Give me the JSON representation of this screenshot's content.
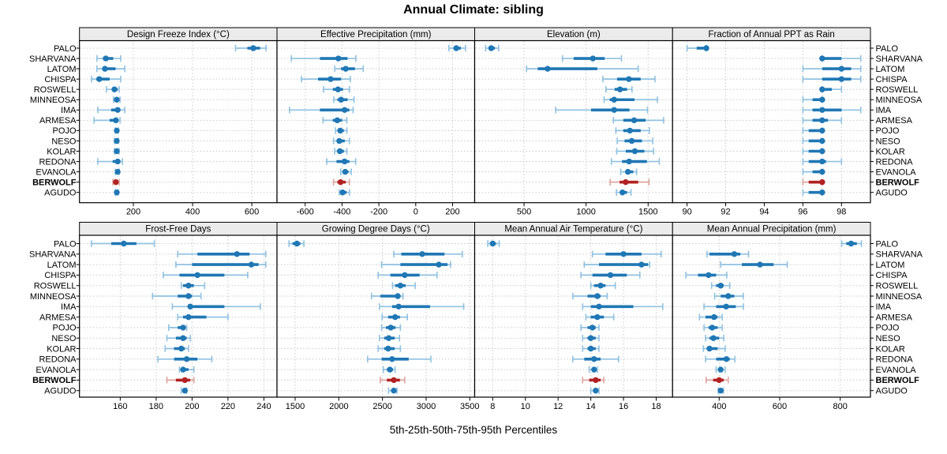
{
  "title": "Annual Climate: sibling",
  "caption": "5th-25th-50th-75th-95th Percentiles",
  "highlight_site": "BERWOLF",
  "sites": [
    "PALO",
    "SHARVANA",
    "LATOM",
    "CHISPA",
    "ROSWELL",
    "MINNEOSA",
    "IMA",
    "ARMESA",
    "POJO",
    "NESO",
    "KOLAR",
    "REDONA",
    "EVANOLA",
    "BERWOLF",
    "AGUDO"
  ],
  "colors": {
    "site_main": "#1f77b4",
    "site_light": "#8fc1e1",
    "highlight_main": "#b22222",
    "highlight_light": "#dda49e",
    "strip_bg": "#ebebeb",
    "grid": "#c9c9c9",
    "border": "#000000",
    "text": "#000000"
  },
  "chart_data": {
    "type": "dotplot",
    "subtype": "percentile-ranges",
    "percentiles": [
      "5th",
      "25th",
      "50th",
      "75th",
      "95th"
    ],
    "legend_position": "none",
    "grid": "dotted",
    "layout": {
      "rows": 2,
      "cols": 4
    },
    "row_order_top_to_bottom": [
      "PALO",
      "SHARVANA",
      "LATOM",
      "CHISPA",
      "ROSWELL",
      "MINNEOSA",
      "IMA",
      "ARMESA",
      "POJO",
      "NESO",
      "KOLAR",
      "REDONA",
      "EVANOLA",
      "BERWOLF",
      "AGUDO"
    ],
    "panels": [
      {
        "title": "Design Freeze Index (°C)",
        "ticks": [
          200,
          400,
          600
        ],
        "xlim": [
          18,
          685
        ],
        "values": [
          [
            545,
            585,
            605,
            628,
            648
          ],
          [
            77,
            97,
            107,
            132,
            157
          ],
          [
            77,
            95,
            104,
            140,
            171
          ],
          [
            59,
            75,
            85,
            120,
            157
          ],
          [
            109,
            128,
            136,
            147,
            152
          ],
          [
            133,
            140,
            144,
            150,
            155
          ],
          [
            80,
            125,
            147,
            155,
            171
          ],
          [
            67,
            120,
            141,
            150,
            155
          ],
          [
            139,
            142,
            144,
            147,
            149
          ],
          [
            136,
            141,
            144,
            147,
            149
          ],
          [
            136,
            141,
            144,
            148,
            152
          ],
          [
            80,
            130,
            147,
            153,
            163
          ],
          [
            139,
            144,
            147,
            150,
            152
          ],
          [
            131,
            138,
            141,
            147,
            152
          ],
          [
            139,
            142,
            144,
            147,
            149
          ]
        ]
      },
      {
        "title": "Effective Precipitation (mm)",
        "ticks": [
          -600,
          -400,
          -200,
          0,
          200
        ],
        "xlim": [
          -753,
          320
        ],
        "values": [
          [
            180,
            205,
            220,
            245,
            270
          ],
          [
            -675,
            -520,
            -420,
            -370,
            -325
          ],
          [
            -440,
            -405,
            -380,
            -330,
            -285
          ],
          [
            -620,
            -530,
            -462,
            -405,
            -355
          ],
          [
            -500,
            -450,
            -422,
            -395,
            -360
          ],
          [
            -445,
            -425,
            -405,
            -370,
            -335
          ],
          [
            -685,
            -520,
            -386,
            -360,
            -340
          ],
          [
            -503,
            -450,
            -426,
            -400,
            -374
          ],
          [
            -436,
            -420,
            -410,
            -390,
            -374
          ],
          [
            -446,
            -425,
            -415,
            -385,
            -360
          ],
          [
            -440,
            -422,
            -412,
            -390,
            -374
          ],
          [
            -483,
            -430,
            -386,
            -360,
            -326
          ],
          [
            -407,
            -392,
            -383,
            -365,
            -350
          ],
          [
            -446,
            -425,
            -408,
            -380,
            -360
          ],
          [
            -415,
            -403,
            -397,
            -375,
            -360
          ]
        ]
      },
      {
        "title": "Elevation (m)",
        "ticks": [
          500,
          1000,
          1500
        ],
        "xlim": [
          102,
          1697
        ],
        "values": [
          [
            190,
            215,
            235,
            265,
            295
          ],
          [
            810,
            900,
            1055,
            1150,
            1285
          ],
          [
            520,
            610,
            690,
            1090,
            1420
          ],
          [
            1135,
            1250,
            1345,
            1440,
            1555
          ],
          [
            1160,
            1230,
            1273,
            1330,
            1370
          ],
          [
            1145,
            1190,
            1226,
            1390,
            1575
          ],
          [
            755,
            1040,
            1226,
            1350,
            1495
          ],
          [
            1220,
            1300,
            1387,
            1480,
            1625
          ],
          [
            1240,
            1300,
            1353,
            1440,
            1510
          ],
          [
            1251,
            1310,
            1368,
            1450,
            1538
          ],
          [
            1247,
            1320,
            1393,
            1470,
            1544
          ],
          [
            1204,
            1290,
            1347,
            1490,
            1590
          ],
          [
            1279,
            1320,
            1337,
            1380,
            1407
          ],
          [
            1194,
            1270,
            1319,
            1420,
            1507
          ],
          [
            1245,
            1275,
            1293,
            1330,
            1362
          ]
        ]
      },
      {
        "title": "Fraction of Annual PPT as Rain",
        "ticks": [
          90,
          92,
          94,
          96,
          98
        ],
        "xlim": [
          89.25,
          99.5
        ],
        "values": [
          [
            90,
            90.5,
            91,
            91,
            91
          ],
          [
            97,
            97,
            97,
            98,
            99
          ],
          [
            96,
            97,
            98,
            98.5,
            99
          ],
          [
            96,
            97,
            98,
            98.5,
            99
          ],
          [
            97,
            97,
            97,
            97.5,
            98
          ],
          [
            96,
            96.5,
            97,
            97,
            97
          ],
          [
            96,
            96.5,
            97,
            98,
            99
          ],
          [
            96,
            96.5,
            97,
            97.3,
            98
          ],
          [
            96,
            96.3,
            97,
            97,
            97
          ],
          [
            96,
            96.3,
            97,
            97,
            97
          ],
          [
            96,
            96.3,
            97,
            97,
            97
          ],
          [
            96,
            96.3,
            97,
            97.2,
            98
          ],
          [
            96,
            96.5,
            97,
            97,
            97
          ],
          [
            96,
            96.3,
            97,
            97,
            97
          ],
          [
            96,
            96.3,
            97,
            97,
            97
          ]
        ]
      },
      {
        "title": "Frost-Free Days",
        "ticks": [
          160,
          180,
          200,
          220,
          240
        ],
        "xlim": [
          137.3,
          247.3
        ],
        "values": [
          [
            144,
            155,
            162,
            169,
            179
          ],
          [
            192,
            203,
            225,
            232,
            241
          ],
          [
            191,
            200,
            233,
            237,
            241
          ],
          [
            184,
            193,
            203,
            218,
            231
          ],
          [
            194,
            195,
            198,
            201,
            207
          ],
          [
            178,
            192,
            198,
            200,
            205
          ],
          [
            189,
            198,
            199,
            218,
            238
          ],
          [
            192,
            195,
            198,
            208,
            220
          ],
          [
            187,
            192,
            195,
            196,
            197
          ],
          [
            186,
            191,
            195,
            197,
            199
          ],
          [
            185,
            190,
            194,
            196,
            198
          ],
          [
            181,
            190,
            197,
            203,
            211
          ],
          [
            193,
            194,
            195,
            198,
            201
          ],
          [
            186,
            191,
            196,
            199,
            201
          ],
          [
            194,
            195,
            196,
            196.5,
            197
          ]
        ]
      },
      {
        "title": "Growing Degree Days (°C)",
        "ticks": [
          1500,
          2000,
          2500,
          3000,
          3500
        ],
        "xlim": [
          1292,
          3556
        ],
        "values": [
          [
            1430,
            1470,
            1520,
            1560,
            1600
          ],
          [
            2630,
            2715,
            2955,
            3210,
            3415
          ],
          [
            2490,
            2705,
            3145,
            3245,
            3280
          ],
          [
            2450,
            2590,
            2755,
            2925,
            3125
          ],
          [
            2615,
            2645,
            2705,
            2765,
            2875
          ],
          [
            2375,
            2475,
            2675,
            2705,
            2735
          ],
          [
            2465,
            2610,
            2685,
            3045,
            3430
          ],
          [
            2495,
            2565,
            2645,
            2700,
            2785
          ],
          [
            2490,
            2540,
            2595,
            2650,
            2705
          ],
          [
            2465,
            2520,
            2572,
            2640,
            2695
          ],
          [
            2450,
            2520,
            2565,
            2640,
            2705
          ],
          [
            2330,
            2490,
            2610,
            2800,
            3055
          ],
          [
            2510,
            2550,
            2585,
            2620,
            2645
          ],
          [
            2475,
            2550,
            2630,
            2700,
            2755
          ],
          [
            2570,
            2600,
            2630,
            2650,
            2665
          ]
        ]
      },
      {
        "title": "Mean Annual Air Temperature (°C)",
        "ticks": [
          8,
          10,
          12,
          14,
          16,
          18
        ],
        "xlim": [
          6.9,
          19.0
        ],
        "values": [
          [
            7.7,
            7.9,
            8.0,
            8.2,
            8.4
          ],
          [
            14.1,
            14.9,
            16.0,
            17.1,
            18.3
          ],
          [
            13.6,
            14.5,
            17.1,
            17.5,
            17.6
          ],
          [
            13.4,
            14.1,
            15.2,
            16.2,
            17.0
          ],
          [
            14.0,
            14.2,
            14.6,
            14.9,
            15.5
          ],
          [
            12.9,
            13.8,
            14.4,
            14.6,
            15.0
          ],
          [
            13.5,
            14.0,
            14.5,
            16.6,
            18.4
          ],
          [
            13.7,
            14.0,
            14.4,
            14.8,
            15.4
          ],
          [
            13.4,
            13.8,
            14.1,
            14.3,
            14.5
          ],
          [
            13.5,
            13.8,
            14.0,
            14.3,
            14.5
          ],
          [
            13.5,
            13.8,
            14.0,
            14.3,
            14.5
          ],
          [
            12.9,
            13.6,
            14.2,
            14.6,
            15.7
          ],
          [
            13.9,
            14.1,
            14.2,
            14.3,
            14.4
          ],
          [
            13.5,
            13.9,
            14.3,
            14.6,
            14.8
          ],
          [
            14.0,
            14.2,
            14.3,
            14.4,
            14.5
          ]
        ]
      },
      {
        "title": "Mean Annual Precipitation (mm)",
        "ticks": [
          400,
          600,
          800
        ],
        "xlim": [
          246,
          900
        ],
        "values": [
          [
            805,
            820,
            836,
            855,
            870
          ],
          [
            360,
            368,
            450,
            470,
            497
          ],
          [
            405,
            475,
            535,
            580,
            625
          ],
          [
            290,
            330,
            365,
            390,
            425
          ],
          [
            375,
            390,
            405,
            415,
            435
          ],
          [
            385,
            405,
            430,
            450,
            480
          ],
          [
            350,
            390,
            423,
            455,
            480
          ],
          [
            335,
            355,
            383,
            395,
            410
          ],
          [
            350,
            365,
            377,
            395,
            410
          ],
          [
            355,
            368,
            381,
            400,
            415
          ],
          [
            348,
            360,
            368,
            395,
            420
          ],
          [
            355,
            390,
            424,
            435,
            452
          ],
          [
            390,
            398,
            405,
            412,
            420
          ],
          [
            357,
            380,
            400,
            415,
            430
          ],
          [
            397,
            402,
            405,
            410,
            414
          ]
        ]
      }
    ]
  }
}
